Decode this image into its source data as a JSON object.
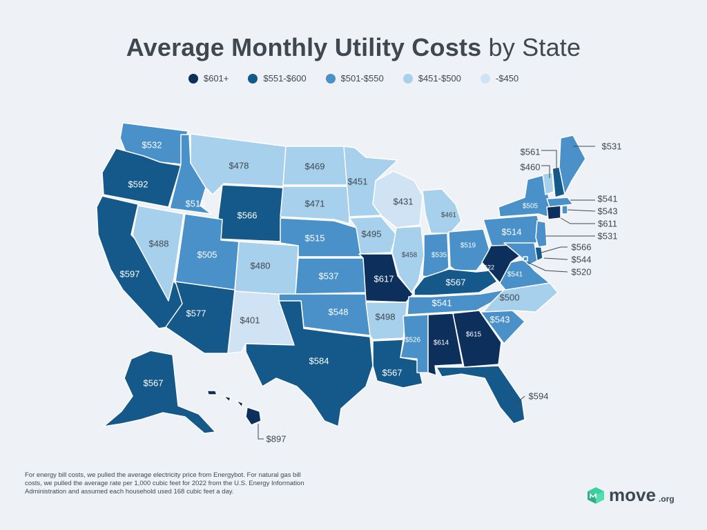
{
  "title": {
    "bold": "Average Monthly Utility Costs",
    "rest": "by State"
  },
  "legend": [
    {
      "label": "$601+",
      "color": "#0c2f5c"
    },
    {
      "label": "$551-$600",
      "color": "#15588a"
    },
    {
      "label": "$501-$550",
      "color": "#4a91c9"
    },
    {
      "label": "$451-$500",
      "color": "#a6d0eb"
    },
    {
      "label": "-$450",
      "color": "#cfe3f4"
    }
  ],
  "states": {
    "WA": "$532",
    "OR": "$592",
    "CA": "$597",
    "NV": "$488",
    "ID": "$515",
    "MT": "$478",
    "WY": "$566",
    "UT": "$505",
    "CO": "$480",
    "AZ": "$577",
    "NM": "$401",
    "ND": "$469",
    "SD": "$471",
    "NE": "$515",
    "KS": "$537",
    "OK": "$548",
    "TX": "$584",
    "MN": "$451",
    "IA": "$495",
    "MO": "$617",
    "AR": "$498",
    "LA": "$567",
    "WI": "$431",
    "IL": "$458",
    "MI": "$461",
    "IN": "$535",
    "OH": "$519",
    "KY": "$567",
    "TN": "$541",
    "MS": "$526",
    "AL": "$614",
    "GA": "$615",
    "FL": "$594",
    "SC": "$543",
    "NC": "$500",
    "VA": "$541",
    "WV": "$622",
    "PA": "$514",
    "NY": "$505",
    "ME": "$531",
    "VT": "$460",
    "NH": "$561",
    "MA": "$541",
    "RI": "$543",
    "CT": "$611",
    "NJ": "$531",
    "DE": "$566",
    "MD": "$544",
    "DC": "$520",
    "AK": "$567",
    "HI": "$897"
  },
  "footnote": "For energy bill costs, we pulled the average electricity price from Energybot. For natural gas bill costs, we pulled the average rate per 1,000 cubic feet for 2022 from the U.S. Energy Information Administration and assumed each household used 168 cubic feet a day.",
  "logo": {
    "name": "move",
    "suffix": ".org",
    "color": "#3ccf9e"
  }
}
